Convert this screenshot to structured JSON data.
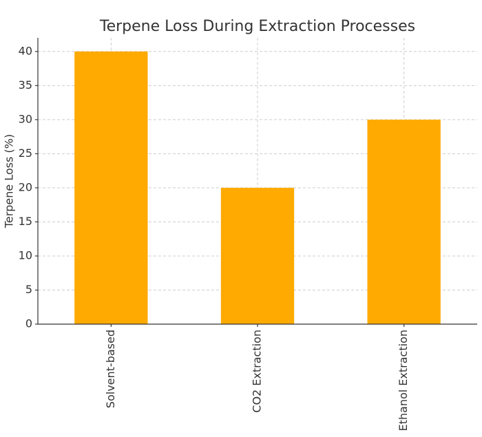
{
  "chart_data": {
    "type": "bar",
    "title": "Terpene Loss During Extraction Processes",
    "y_label": "Terpene Loss (%)",
    "categories": [
      "Solvent-based",
      "CO2 Extraction",
      "Ethanol Extraction"
    ],
    "values": [
      40,
      20,
      30
    ],
    "color": "#ffaa00",
    "ylim": [
      0,
      42
    ],
    "yticks": [
      0,
      5,
      10,
      15,
      20,
      25,
      30,
      35,
      40
    ],
    "grid": true
  }
}
